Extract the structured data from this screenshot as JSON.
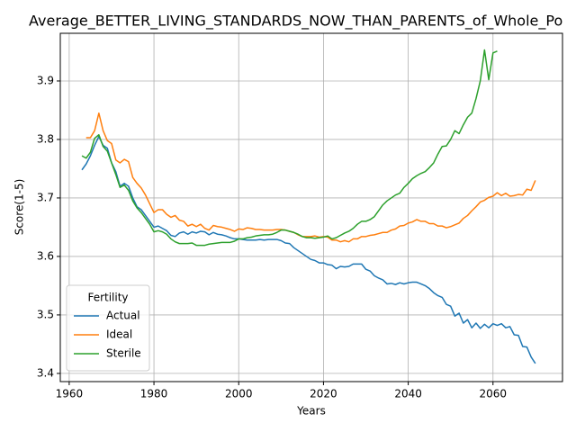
{
  "chart_data": {
    "type": "line",
    "title": "Average_BETTER_LIVING_STANDARDS_NOW_THAN_PARENTS_of_Whole_Po",
    "x_label": "Years",
    "y_label": "Score(1-5)",
    "legend_title": "Fertility",
    "legend_position": "lower left",
    "grid": true,
    "xlim": [
      1957.9,
      2076.4
    ],
    "ylim": [
      3.386,
      3.9815
    ],
    "xticks": [
      1960,
      1980,
      2000,
      2020,
      2040,
      2060
    ],
    "yticks": [
      3.4,
      3.5,
      3.6,
      3.7,
      3.8,
      3.9
    ],
    "x": [
      1963,
      1964,
      1965,
      1966,
      1967,
      1968,
      1969,
      1970,
      1971,
      1972,
      1973,
      1974,
      1975,
      1976,
      1977,
      1978,
      1979,
      1980,
      1981,
      1982,
      1983,
      1984,
      1985,
      1986,
      1987,
      1988,
      1989,
      1990,
      1991,
      1992,
      1993,
      1994,
      1995,
      1996,
      1997,
      1998,
      1999,
      2000,
      2001,
      2002,
      2003,
      2004,
      2005,
      2006,
      2007,
      2008,
      2009,
      2010,
      2011,
      2012,
      2013,
      2014,
      2015,
      2016,
      2017,
      2018,
      2019,
      2020,
      2021,
      2022,
      2023,
      2024,
      2025,
      2026,
      2027,
      2028,
      2029,
      2030,
      2031,
      2032,
      2033,
      2034,
      2035,
      2036,
      2037,
      2038,
      2039,
      2040,
      2041,
      2042,
      2043,
      2044,
      2045,
      2046,
      2047,
      2048,
      2049,
      2050,
      2051,
      2052,
      2053,
      2054,
      2055,
      2056,
      2057,
      2058,
      2059,
      2060,
      2061,
      2062,
      2063,
      2064,
      2065,
      2066,
      2067,
      2068,
      2069,
      2070
    ],
    "series": [
      {
        "name": "Actual",
        "color": "#1f77b4",
        "values": [
          3.748,
          3.758,
          3.772,
          3.79,
          3.805,
          3.79,
          3.785,
          3.76,
          3.745,
          3.72,
          3.725,
          3.72,
          3.7,
          3.685,
          3.68,
          3.67,
          3.66,
          3.65,
          3.652,
          3.648,
          3.644,
          3.636,
          3.634,
          3.64,
          3.642,
          3.638,
          3.642,
          3.64,
          3.643,
          3.642,
          3.637,
          3.641,
          3.638,
          3.637,
          3.635,
          3.632,
          3.63,
          3.63,
          3.629,
          3.628,
          3.628,
          3.628,
          3.629,
          3.628,
          3.629,
          3.629,
          3.629,
          3.627,
          3.623,
          3.622,
          3.615,
          3.61,
          3.605,
          3.6,
          3.595,
          3.593,
          3.589,
          3.589,
          3.586,
          3.585,
          3.579,
          3.583,
          3.582,
          3.583,
          3.587,
          3.587,
          3.587,
          3.578,
          3.575,
          3.567,
          3.563,
          3.56,
          3.553,
          3.554,
          3.552,
          3.555,
          3.553,
          3.555,
          3.556,
          3.556,
          3.553,
          3.55,
          3.545,
          3.538,
          3.533,
          3.53,
          3.518,
          3.515,
          3.498,
          3.503,
          3.486,
          3.492,
          3.478,
          3.486,
          3.477,
          3.484,
          3.478,
          3.485,
          3.482,
          3.485,
          3.478,
          3.48,
          3.466,
          3.465,
          3.446,
          3.445,
          3.428,
          3.417
        ]
      },
      {
        "name": "Ideal",
        "color": "#ff7f0e",
        "values": [
          null,
          3.803,
          3.803,
          3.815,
          3.845,
          3.815,
          3.798,
          3.793,
          3.765,
          3.76,
          3.766,
          3.762,
          3.735,
          3.725,
          3.717,
          3.705,
          3.69,
          3.675,
          3.68,
          3.68,
          3.672,
          3.667,
          3.67,
          3.662,
          3.66,
          3.652,
          3.655,
          3.651,
          3.655,
          3.648,
          3.645,
          3.653,
          3.651,
          3.65,
          3.648,
          3.646,
          3.643,
          3.647,
          3.646,
          3.649,
          3.648,
          3.646,
          3.646,
          3.645,
          3.645,
          3.645,
          3.646,
          3.646,
          3.645,
          3.643,
          3.641,
          3.637,
          3.634,
          3.634,
          3.634,
          3.635,
          3.633,
          3.634,
          3.633,
          3.628,
          3.628,
          3.625,
          3.627,
          3.625,
          3.63,
          3.63,
          3.634,
          3.634,
          3.636,
          3.637,
          3.639,
          3.641,
          3.641,
          3.645,
          3.647,
          3.652,
          3.653,
          3.657,
          3.659,
          3.663,
          3.66,
          3.66,
          3.656,
          3.656,
          3.652,
          3.652,
          3.649,
          3.651,
          3.654,
          3.657,
          3.665,
          3.67,
          3.678,
          3.685,
          3.693,
          3.696,
          3.701,
          3.703,
          3.709,
          3.704,
          3.708,
          3.703,
          3.704,
          3.706,
          3.705,
          3.715,
          3.713,
          3.73
        ]
      },
      {
        "name": "Sterile",
        "color": "#2ca02c",
        "values": [
          3.772,
          3.768,
          3.778,
          3.802,
          3.808,
          3.788,
          3.78,
          3.76,
          3.74,
          3.718,
          3.722,
          3.713,
          3.695,
          3.683,
          3.675,
          3.665,
          3.655,
          3.642,
          3.644,
          3.642,
          3.638,
          3.63,
          3.625,
          3.622,
          3.622,
          3.622,
          3.623,
          3.619,
          3.619,
          3.619,
          3.621,
          3.622,
          3.623,
          3.624,
          3.624,
          3.624,
          3.626,
          3.63,
          3.63,
          3.632,
          3.633,
          3.635,
          3.636,
          3.637,
          3.637,
          3.638,
          3.641,
          3.645,
          3.645,
          3.643,
          3.641,
          3.638,
          3.634,
          3.632,
          3.632,
          3.631,
          3.632,
          3.633,
          3.635,
          3.63,
          3.632,
          3.636,
          3.64,
          3.643,
          3.648,
          3.655,
          3.66,
          3.66,
          3.663,
          3.668,
          3.678,
          3.688,
          3.695,
          3.7,
          3.705,
          3.708,
          3.718,
          3.725,
          3.733,
          3.738,
          3.742,
          3.745,
          3.752,
          3.76,
          3.775,
          3.788,
          3.789,
          3.8,
          3.815,
          3.81,
          3.825,
          3.838,
          3.845,
          3.87,
          3.9,
          3.953,
          3.902,
          3.948,
          3.951,
          null,
          null,
          null,
          null,
          null,
          null,
          null,
          null,
          null
        ]
      }
    ]
  }
}
